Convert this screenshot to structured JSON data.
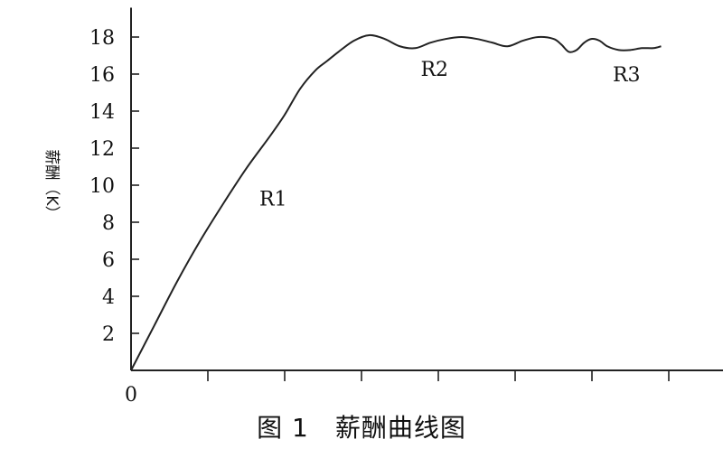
{
  "chart_data": {
    "type": "line",
    "title": "图 1　薪酬曲线图",
    "ylabel": "薪酬（K）",
    "xlabel": "",
    "ylim": [
      0,
      19
    ],
    "yticks": [
      2,
      4,
      6,
      8,
      10,
      12,
      14,
      16,
      18
    ],
    "origin_label": "0",
    "x_ticks_count": 7,
    "grid": false,
    "legend": "none",
    "series": [
      {
        "x": [
          0,
          0.3,
          0.6,
          0.9,
          1.2,
          1.5,
          1.8,
          2.0,
          2.2,
          2.4,
          2.55,
          2.7,
          2.9,
          3.1,
          3.3,
          3.5,
          3.7,
          3.9,
          4.1,
          4.3,
          4.5,
          4.7,
          4.9,
          5.1,
          5.3,
          5.5,
          5.6,
          5.7,
          5.8,
          5.9,
          6.0,
          6.1,
          6.2,
          6.35,
          6.5,
          6.65,
          6.8,
          6.9
        ],
        "y": [
          0,
          2.4,
          4.8,
          7.0,
          9.0,
          10.9,
          12.6,
          13.8,
          15.2,
          16.2,
          16.7,
          17.2,
          17.8,
          18.1,
          17.9,
          17.5,
          17.4,
          17.7,
          17.9,
          18.0,
          17.9,
          17.7,
          17.5,
          17.8,
          18.0,
          17.9,
          17.6,
          17.2,
          17.3,
          17.7,
          17.9,
          17.8,
          17.5,
          17.3,
          17.3,
          17.4,
          17.4,
          17.5
        ]
      }
    ],
    "annotations": [
      {
        "text": "R1",
        "x": 1.85,
        "y": 8.9
      },
      {
        "text": "R2",
        "x": 3.95,
        "y": 15.9
      },
      {
        "text": "R3",
        "x": 6.45,
        "y": 15.6
      }
    ]
  }
}
